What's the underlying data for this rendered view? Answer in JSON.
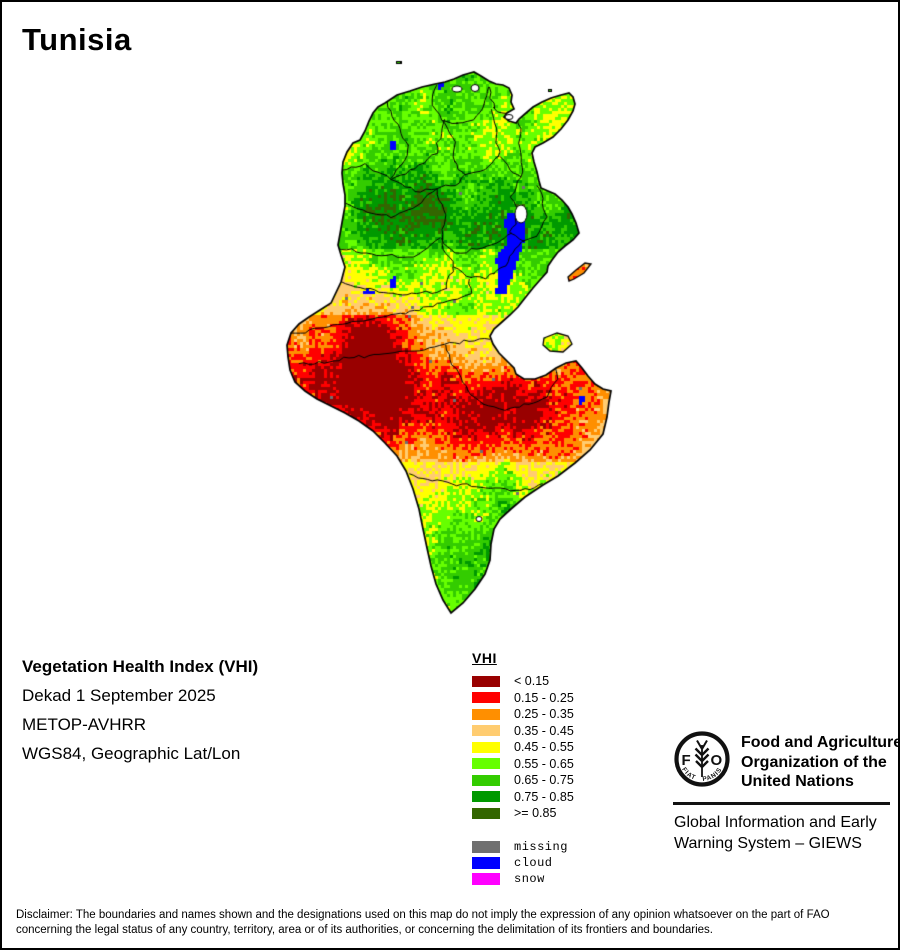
{
  "title": "Tunisia",
  "info": {
    "product": "Vegetation Health Index (VHI)",
    "dekad": "Dekad 1 September 2025",
    "sensor": "METOP-AVHRR",
    "projection": "WGS84, Geographic Lat/Lon"
  },
  "legend": {
    "title": "VHI",
    "classes": [
      {
        "label": "< 0.15",
        "color": "#990000"
      },
      {
        "label": "0.15 - 0.25",
        "color": "#FF0000"
      },
      {
        "label": "0.25 - 0.35",
        "color": "#FF8F00"
      },
      {
        "label": "0.35 - 0.45",
        "color": "#FFCC70"
      },
      {
        "label": "0.45 - 0.55",
        "color": "#FFFF00"
      },
      {
        "label": "0.55 - 0.65",
        "color": "#66FF00"
      },
      {
        "label": "0.65 - 0.75",
        "color": "#33CC00"
      },
      {
        "label": "0.75 - 0.85",
        "color": "#009900"
      },
      {
        "label": ">= 0.85",
        "color": "#336600"
      }
    ],
    "flags": [
      {
        "label": "missing",
        "color": "#707070"
      },
      {
        "label": "cloud",
        "color": "#0000FF"
      },
      {
        "label": "snow",
        "color": "#FF00FF"
      }
    ]
  },
  "fao": {
    "logo_text": "FAO",
    "logo_motto": "FIAT PANIS",
    "name_lines": [
      "Food and Agriculture",
      "Organization of the",
      "United Nations"
    ],
    "giews_lines": [
      "Global Information and Early",
      "Warning System – GIEWS"
    ]
  },
  "disclaimer": {
    "line1": "Disclaimer: The boundaries and names shown and the designations used on this map do not imply the expression of any opinion whatsoever on the part of FAO",
    "line2": "concerning the legal status of any country, territory, area or of its authorities, or concerning the delimitation of its frontiers and boundaries."
  }
}
